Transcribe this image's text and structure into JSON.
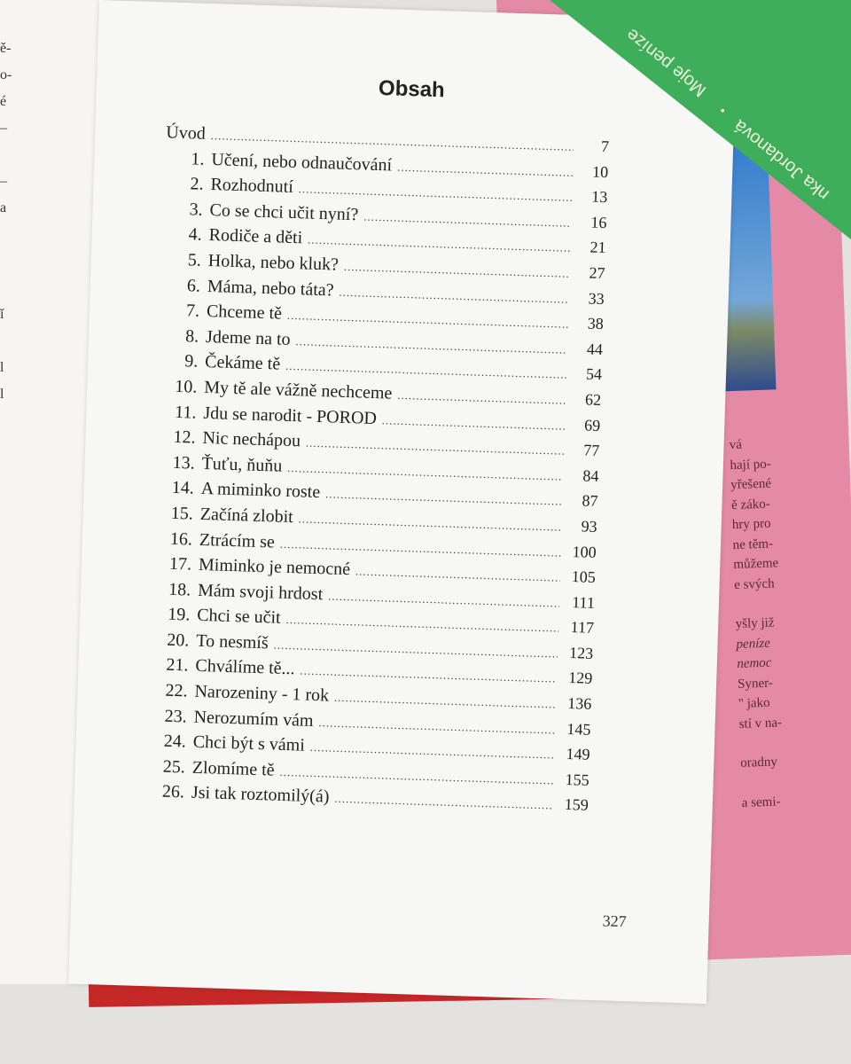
{
  "background_book": {
    "cover_text": "Moje peníze",
    "author_fragment": "nka Jordanová"
  },
  "side_page_fragments": [
    "vá",
    "hají po-",
    "yřešené",
    "ě záko-",
    "hry pro",
    "ne těm-",
    "můžeme",
    "e svých",
    "",
    "yšly již",
    "peníze",
    "nemoc",
    "Syner-",
    "\" jako",
    "stí v na-",
    "",
    "oradny",
    "",
    "a semi-"
  ],
  "left_page_fragments": [
    "ě-",
    "o-",
    "é",
    "–",
    "",
    "–",
    "a",
    "",
    "",
    "",
    "ǐ",
    "",
    "l",
    "l"
  ],
  "page": {
    "title": "Obsah",
    "entries": [
      {
        "num": "",
        "label": "Úvod",
        "page": "7"
      },
      {
        "num": "1.",
        "label": "Učení, nebo odnaučování",
        "page": "10"
      },
      {
        "num": "2.",
        "label": "Rozhodnutí",
        "page": "13"
      },
      {
        "num": "3.",
        "label": "Co se chci učit nyní?",
        "page": "16"
      },
      {
        "num": "4.",
        "label": "Rodiče a děti",
        "page": "21"
      },
      {
        "num": "5.",
        "label": "Holka, nebo kluk?",
        "page": "27"
      },
      {
        "num": "6.",
        "label": "Máma, nebo táta?",
        "page": "33"
      },
      {
        "num": "7.",
        "label": "Chceme tě",
        "page": "38"
      },
      {
        "num": "8.",
        "label": "Jdeme na to",
        "page": "44"
      },
      {
        "num": "9.",
        "label": "Čekáme tě",
        "page": "54"
      },
      {
        "num": "10.",
        "label": "My tě ale vážně nechceme",
        "page": "62"
      },
      {
        "num": "11.",
        "label": "Jdu se narodit - POROD",
        "page": "69"
      },
      {
        "num": "12.",
        "label": "Nic nechápou",
        "page": "77"
      },
      {
        "num": "13.",
        "label": "Ťuťu, ňuňu",
        "page": "84"
      },
      {
        "num": "14.",
        "label": "A miminko roste",
        "page": "87"
      },
      {
        "num": "15.",
        "label": "Začíná zlobit",
        "page": "93"
      },
      {
        "num": "16.",
        "label": "Ztrácím se",
        "page": "100"
      },
      {
        "num": "17.",
        "label": "Miminko je nemocné",
        "page": "105"
      },
      {
        "num": "18.",
        "label": "Mám svoji hrdost",
        "page": "111"
      },
      {
        "num": "19.",
        "label": "Chci se učit",
        "page": "117"
      },
      {
        "num": "20.",
        "label": "To nesmíš",
        "page": "123"
      },
      {
        "num": "21.",
        "label": "Chválíme tě...",
        "page": "129"
      },
      {
        "num": "22.",
        "label": "Narozeniny - 1 rok",
        "page": "136"
      },
      {
        "num": "23.",
        "label": "Nerozumím vám",
        "page": "145"
      },
      {
        "num": "24.",
        "label": "Chci být s vámi",
        "page": "149"
      },
      {
        "num": "25.",
        "label": "Zlomíme tě",
        "page": "155"
      },
      {
        "num": "26.",
        "label": "Jsi tak roztomilý(á)",
        "page": "159"
      }
    ],
    "folio": "327"
  }
}
